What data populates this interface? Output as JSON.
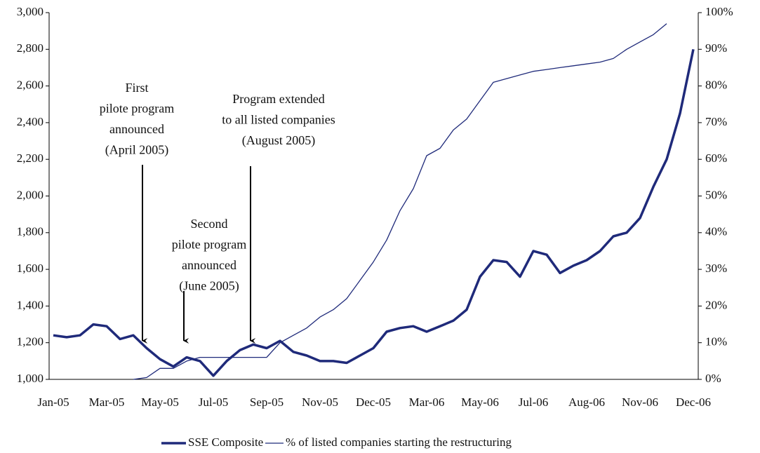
{
  "chart_data": {
    "type": "line",
    "categories": [
      "Jan-05",
      null,
      null,
      null,
      "Mar-05",
      null,
      null,
      null,
      "May-05",
      null,
      null,
      null,
      "Jul-05",
      null,
      null,
      null,
      "Sep-05",
      null,
      null,
      null,
      "Nov-05",
      null,
      null,
      null,
      "Dec-05",
      null,
      null,
      null,
      "Mar-06",
      null,
      null,
      null,
      "May-06",
      null,
      null,
      null,
      "Jul-06",
      null,
      null,
      null,
      "Aug-06",
      null,
      null,
      null,
      "Nov-06",
      null,
      null,
      null,
      "Dec-06"
    ],
    "series": [
      {
        "name": "SSE Composite",
        "color": "#1f2a7a",
        "axis": "y",
        "values": [
          1240,
          1230,
          1240,
          1300,
          1290,
          1220,
          1240,
          1170,
          1110,
          1070,
          1120,
          1100,
          1020,
          1100,
          1160,
          1190,
          1170,
          1210,
          1150,
          1130,
          1100,
          1100,
          1090,
          1130,
          1170,
          1260,
          1280,
          1290,
          1260,
          1290,
          1320,
          1380,
          1560,
          1650,
          1640,
          1560,
          1700,
          1680,
          1580,
          1620,
          1650,
          1700,
          1780,
          1800,
          1880,
          2050,
          2200,
          2450,
          2800
        ]
      },
      {
        "name": "% of listed companies starting the restructuring",
        "color": "#1f2a7a",
        "axis": "y2",
        "values": [
          null,
          null,
          null,
          null,
          null,
          null,
          0,
          0.5,
          3,
          3,
          5,
          6,
          6,
          6,
          6,
          6,
          6,
          10,
          12,
          14,
          17,
          19,
          22,
          27,
          32,
          38,
          46,
          52,
          61,
          63,
          68,
          71,
          76,
          81,
          82,
          83,
          84,
          84.5,
          85,
          85.5,
          86,
          86.5,
          87.5,
          90,
          92,
          94,
          97,
          null,
          null
        ]
      }
    ],
    "ylim": [
      1000,
      3000
    ],
    "yticks": [
      {
        "value": 1000,
        "label": "1,000"
      },
      {
        "value": 1200,
        "label": "1,200"
      },
      {
        "value": 1400,
        "label": "1,400"
      },
      {
        "value": 1600,
        "label": "1,600"
      },
      {
        "value": 1800,
        "label": "1,800"
      },
      {
        "value": 2000,
        "label": "2,000"
      },
      {
        "value": 2200,
        "label": "2,200"
      },
      {
        "value": 2400,
        "label": "2,400"
      },
      {
        "value": 2600,
        "label": "2,600"
      },
      {
        "value": 2800,
        "label": "2,800"
      },
      {
        "value": 3000,
        "label": "3,000"
      }
    ],
    "y2lim": [
      0,
      100
    ],
    "y2ticks": [
      {
        "value": 0,
        "label": "0%"
      },
      {
        "value": 10,
        "label": "10%"
      },
      {
        "value": 20,
        "label": "20%"
      },
      {
        "value": 30,
        "label": "30%"
      },
      {
        "value": 40,
        "label": "40%"
      },
      {
        "value": 50,
        "label": "50%"
      },
      {
        "value": 60,
        "label": "60%"
      },
      {
        "value": 70,
        "label": "70%"
      },
      {
        "value": 80,
        "label": "80%"
      },
      {
        "value": 90,
        "label": "90%"
      },
      {
        "value": 100,
        "label": "100%"
      }
    ],
    "annotations": [
      {
        "lines": [
          "First",
          "pilote program",
          "announced",
          "(April 2005)"
        ]
      },
      {
        "lines": [
          "Second",
          "pilote program",
          "announced",
          "(June 2005)"
        ]
      },
      {
        "lines": [
          "Program extended",
          "to all listed companies",
          "(August 2005)"
        ]
      }
    ],
    "legend": "bottom"
  }
}
